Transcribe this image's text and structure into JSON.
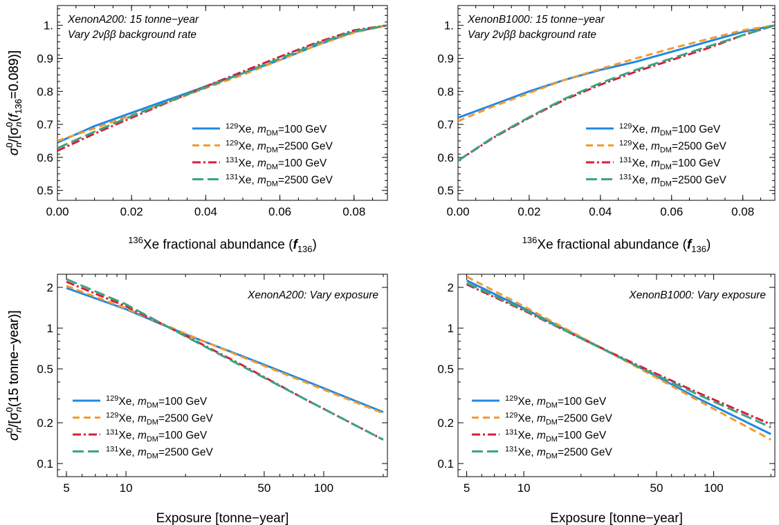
{
  "figure": {
    "panels": [
      {
        "annotation_lines": [
          "XenonA200: 15 tonne−year",
          "Vary 2νββ background rate"
        ],
        "xlabel": {
          "sup": "136",
          "main": "Xe fractional abundance (",
          "ital": "f",
          "sub": "136",
          "end": ")"
        },
        "ylabel": {
          "a": "σ",
          "b": "0",
          "c": "n",
          "d": "/[σ",
          "e": "0",
          "f": "n",
          "g": "(",
          "h": "f",
          "i": "136",
          "j": "=0.089)]"
        }
      },
      {
        "annotation_lines": [
          "XenonB1000: 15 tonne−year",
          "Vary 2νββ background rate"
        ],
        "xlabel": {
          "sup": "136",
          "main": "Xe fractional abundance (",
          "ital": "f",
          "sub": "136",
          "end": ")"
        },
        "ylabel": {
          "a": "σ",
          "b": "0",
          "c": "n",
          "d": "/[σ",
          "e": "0",
          "f": "n",
          "g": "(",
          "h": "f",
          "i": "136",
          "j": "=0.089)]"
        }
      },
      {
        "annotation_lines": [
          "XenonA200: Vary exposure"
        ],
        "xlabel": {
          "main": "Exposure [tonne−year]"
        },
        "ylabel": {
          "a": "σ",
          "b": "0",
          "c": "n",
          "d": "/[σ",
          "e": "0",
          "f": "n",
          "g": "(15 tonne−year)]"
        }
      },
      {
        "annotation_lines": [
          "XenonB1000: Vary exposure"
        ],
        "xlabel": {
          "main": "Exposure [tonne−year]"
        },
        "ylabel": {
          "a": "σ",
          "b": "0",
          "c": "n",
          "d": "/[σ",
          "e": "0",
          "f": "n",
          "g": "(15 tonne−year)]"
        }
      }
    ],
    "legend": [
      {
        "iso": "129",
        "el": "Xe, ",
        "m": "m",
        "sub": "DM",
        "val": "=100 GeV"
      },
      {
        "iso": "129",
        "el": "Xe, ",
        "m": "m",
        "sub": "DM",
        "val": "=2500 GeV"
      },
      {
        "iso": "131",
        "el": "Xe, ",
        "m": "m",
        "sub": "DM",
        "val": "=100 GeV"
      },
      {
        "iso": "131",
        "el": "Xe, ",
        "m": "m",
        "sub": "DM",
        "val": "=2500 GeV"
      }
    ],
    "series_styles": [
      {
        "color": "#1e88e5",
        "dash": "none"
      },
      {
        "color": "#f39a2d",
        "dash": "10,6"
      },
      {
        "color": "#d81b3c",
        "dash": "12,4,3,4"
      },
      {
        "color": "#3aa57d",
        "dash": "16,6"
      }
    ]
  },
  "chart_data": [
    {
      "type": "line",
      "title": "XenonA200: 15 tonne-year, Vary 2νββ background rate",
      "xlabel": "136Xe fractional abundance (f136)",
      "ylabel": "σn0/[σn0(f136=0.089)]",
      "xlim": [
        0,
        0.089
      ],
      "ylim": [
        0.47,
        1.06
      ],
      "xticks": [
        0.0,
        0.02,
        0.04,
        0.06,
        0.08
      ],
      "xtick_labels": [
        "0.00",
        "0.02",
        "0.04",
        "0.06",
        "0.08"
      ],
      "yticks": [
        0.5,
        0.6,
        0.7,
        0.8,
        0.9,
        1.0
      ],
      "ytick_labels": [
        "0.5",
        "0.6",
        "0.7",
        "0.8",
        "0.9",
        "1."
      ],
      "series": [
        {
          "name": "129Xe, mDM=100 GeV",
          "x": [
            0,
            0.01,
            0.02,
            0.03,
            0.04,
            0.05,
            0.06,
            0.07,
            0.08,
            0.089
          ],
          "y": [
            0.645,
            0.695,
            0.735,
            0.775,
            0.815,
            0.855,
            0.895,
            0.94,
            0.98,
            1.0
          ]
        },
        {
          "name": "129Xe, mDM=2500 GeV",
          "x": [
            0,
            0.01,
            0.02,
            0.03,
            0.04,
            0.05,
            0.06,
            0.07,
            0.08,
            0.089
          ],
          "y": [
            0.65,
            0.688,
            0.728,
            0.768,
            0.81,
            0.85,
            0.895,
            0.94,
            0.978,
            1.0
          ]
        },
        {
          "name": "131Xe, mDM=100 GeV",
          "x": [
            0,
            0.01,
            0.02,
            0.03,
            0.04,
            0.05,
            0.06,
            0.07,
            0.08,
            0.089
          ],
          "y": [
            0.62,
            0.672,
            0.72,
            0.768,
            0.815,
            0.86,
            0.905,
            0.948,
            0.985,
            1.0
          ]
        },
        {
          "name": "131Xe, mDM=2500 GeV",
          "x": [
            0,
            0.01,
            0.02,
            0.03,
            0.04,
            0.05,
            0.06,
            0.07,
            0.08,
            0.089
          ],
          "y": [
            0.628,
            0.678,
            0.725,
            0.77,
            0.812,
            0.855,
            0.9,
            0.945,
            0.982,
            1.0
          ]
        }
      ]
    },
    {
      "type": "line",
      "title": "XenonB1000: 15 tonne-year, Vary 2νββ background rate",
      "xlabel": "136Xe fractional abundance (f136)",
      "ylabel": "σn0/[σn0(f136=0.089)]",
      "xlim": [
        0,
        0.089
      ],
      "ylim": [
        0.47,
        1.06
      ],
      "xticks": [
        0.0,
        0.02,
        0.04,
        0.06,
        0.08
      ],
      "xtick_labels": [
        "0.00",
        "0.02",
        "0.04",
        "0.06",
        "0.08"
      ],
      "yticks": [
        0.5,
        0.6,
        0.7,
        0.8,
        0.9,
        1.0
      ],
      "ytick_labels": [
        "0.5",
        "0.6",
        "0.7",
        "0.8",
        "0.9",
        "1."
      ],
      "series": [
        {
          "name": "129Xe, mDM=100 GeV",
          "x": [
            0,
            0.01,
            0.02,
            0.03,
            0.04,
            0.05,
            0.06,
            0.07,
            0.08,
            0.089
          ],
          "y": [
            0.72,
            0.76,
            0.8,
            0.835,
            0.865,
            0.89,
            0.92,
            0.95,
            0.98,
            1.0
          ]
        },
        {
          "name": "129Xe, mDM=2500 GeV",
          "x": [
            0,
            0.01,
            0.02,
            0.03,
            0.04,
            0.05,
            0.06,
            0.07,
            0.08,
            0.089
          ],
          "y": [
            0.71,
            0.755,
            0.795,
            0.835,
            0.868,
            0.9,
            0.93,
            0.958,
            0.985,
            1.0
          ]
        },
        {
          "name": "131Xe, mDM=100 GeV",
          "x": [
            0,
            0.01,
            0.02,
            0.03,
            0.04,
            0.05,
            0.06,
            0.07,
            0.08,
            0.089
          ],
          "y": [
            0.59,
            0.66,
            0.72,
            0.775,
            0.82,
            0.86,
            0.895,
            0.93,
            0.97,
            1.0
          ]
        },
        {
          "name": "131Xe, mDM=2500 GeV",
          "x": [
            0,
            0.01,
            0.02,
            0.03,
            0.04,
            0.05,
            0.06,
            0.07,
            0.08,
            0.089
          ],
          "y": [
            0.59,
            0.662,
            0.722,
            0.778,
            0.825,
            0.865,
            0.9,
            0.935,
            0.97,
            1.0
          ]
        }
      ]
    },
    {
      "type": "line",
      "title": "XenonA200: Vary exposure",
      "xlabel": "Exposure [tonne-year]",
      "ylabel": "σn0/[σn0(15 tonne-year)]",
      "xscale": "log",
      "yscale": "log",
      "xlim": [
        4.5,
        210
      ],
      "ylim": [
        0.08,
        2.5
      ],
      "xticks": [
        5,
        10,
        50,
        100
      ],
      "xtick_labels": [
        "5",
        "10",
        "50",
        "100"
      ],
      "yticks": [
        0.1,
        0.2,
        0.5,
        1,
        2
      ],
      "ytick_labels": [
        "0.1",
        "0.2",
        "0.5",
        "1",
        "2"
      ],
      "series": [
        {
          "name": "129Xe, mDM=100 GeV",
          "x": [
            5,
            10,
            20,
            40,
            80,
            200
          ],
          "y": [
            1.98,
            1.38,
            0.9,
            0.61,
            0.41,
            0.24
          ]
        },
        {
          "name": "129Xe, mDM=2500 GeV",
          "x": [
            5,
            10,
            20,
            40,
            80,
            200
          ],
          "y": [
            2.05,
            1.4,
            0.91,
            0.6,
            0.4,
            0.235
          ]
        },
        {
          "name": "131Xe, mDM=100 GeV",
          "x": [
            5,
            10,
            20,
            40,
            80,
            200
          ],
          "y": [
            2.2,
            1.45,
            0.88,
            0.52,
            0.3,
            0.15
          ]
        },
        {
          "name": "131Xe, mDM=2500 GeV",
          "x": [
            5,
            10,
            20,
            40,
            80,
            200
          ],
          "y": [
            2.3,
            1.5,
            0.87,
            0.51,
            0.3,
            0.15
          ]
        }
      ]
    },
    {
      "type": "line",
      "title": "XenonB1000: Vary exposure",
      "xlabel": "Exposure [tonne-year]",
      "ylabel": "σn0/[σn0(15 tonne-year)]",
      "xscale": "log",
      "yscale": "log",
      "xlim": [
        4.5,
        210
      ],
      "ylim": [
        0.08,
        2.5
      ],
      "xticks": [
        5,
        10,
        50,
        100
      ],
      "xtick_labels": [
        "5",
        "10",
        "50",
        "100"
      ],
      "yticks": [
        0.1,
        0.2,
        0.5,
        1,
        2
      ],
      "ytick_labels": [
        "0.1",
        "0.2",
        "0.5",
        "1",
        "2"
      ],
      "series": [
        {
          "name": "129Xe, mDM=100 GeV",
          "x": [
            5,
            10,
            20,
            40,
            80,
            200
          ],
          "y": [
            2.25,
            1.4,
            0.85,
            0.52,
            0.31,
            0.165
          ]
        },
        {
          "name": "129Xe, mDM=2500 GeV",
          "x": [
            5,
            10,
            20,
            40,
            80,
            200
          ],
          "y": [
            2.4,
            1.45,
            0.86,
            0.51,
            0.3,
            0.15
          ]
        },
        {
          "name": "131Xe, mDM=100 GeV",
          "x": [
            5,
            10,
            20,
            40,
            80,
            200
          ],
          "y": [
            2.1,
            1.35,
            0.84,
            0.53,
            0.34,
            0.195
          ]
        },
        {
          "name": "131Xe, mDM=2500 GeV",
          "x": [
            5,
            10,
            20,
            40,
            80,
            200
          ],
          "y": [
            2.15,
            1.37,
            0.84,
            0.52,
            0.33,
            0.185
          ]
        }
      ]
    }
  ]
}
